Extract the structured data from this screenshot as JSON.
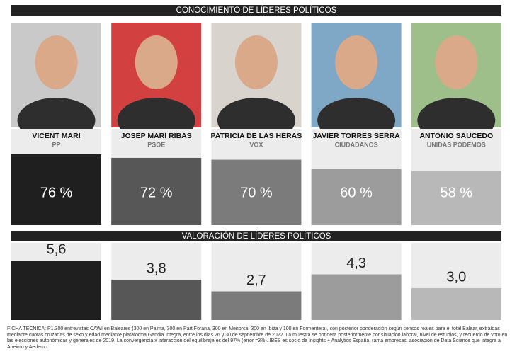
{
  "chart_data": [
    {
      "type": "bar",
      "title": "CONOCIMIENTO DE LÍDERES POLÍTICOS",
      "categories": [
        "VICENT MARÍ",
        "JOSEP MARÍ RIBAS",
        "PATRICIA DE LAS HERAS",
        "JAVIER TORRES SERRA",
        "ANTONIO SAUCEDO"
      ],
      "parties": [
        "PP",
        "PSOE",
        "VOX",
        "CIUDADANOS",
        "UNIDAS PODEMOS"
      ],
      "values": [
        76,
        72,
        70,
        60,
        58
      ],
      "value_labels": [
        "76 %",
        "72 %",
        "70 %",
        "60 %",
        "58 %"
      ],
      "colors": [
        "#1f1f1f",
        "#575757",
        "#7b7b7b",
        "#9c9c9c",
        "#b8b8b8"
      ],
      "ylim": [
        0,
        100
      ]
    },
    {
      "type": "bar",
      "title": "VALORACIÓN DE LÍDERES POLÍTICOS",
      "values": [
        5.6,
        3.8,
        2.7,
        4.3,
        3.0
      ],
      "value_labels": [
        "5,6",
        "3,8",
        "2,7",
        "4,3",
        "3,0"
      ],
      "colors": [
        "#1f1f1f",
        "#575757",
        "#7b7b7b",
        "#9c9c9c",
        "#b8b8b8"
      ],
      "ylim": [
        0,
        7
      ]
    }
  ],
  "footnote": "FICHA TÉCNICA: P1.300 entrevistas CAWI en Baleares (300 en Palma, 300 en Part Forana, 300 en Menorca, 300 en Ibiza y 100 en Formentera), con posterior ponderación según censos reales para el total Balear, extraídas mediante cuotas cruzadas de sexo y edad mediante plataforma Gandia Integra, entre los días 26 y 30 de septiembre de 2022. La muestra se pondera posteriormente por situación laboral, nivel de estudios, y recuerdo de voto en las elecciones autonómicas y generales de 2019. La convergencia x interacción del equilibraje es del 97% (error =3%). IBES es socio de Insights + Analytics España, rama empresas, asociación de Data Science que integra a Aneimo y Aedemo."
}
